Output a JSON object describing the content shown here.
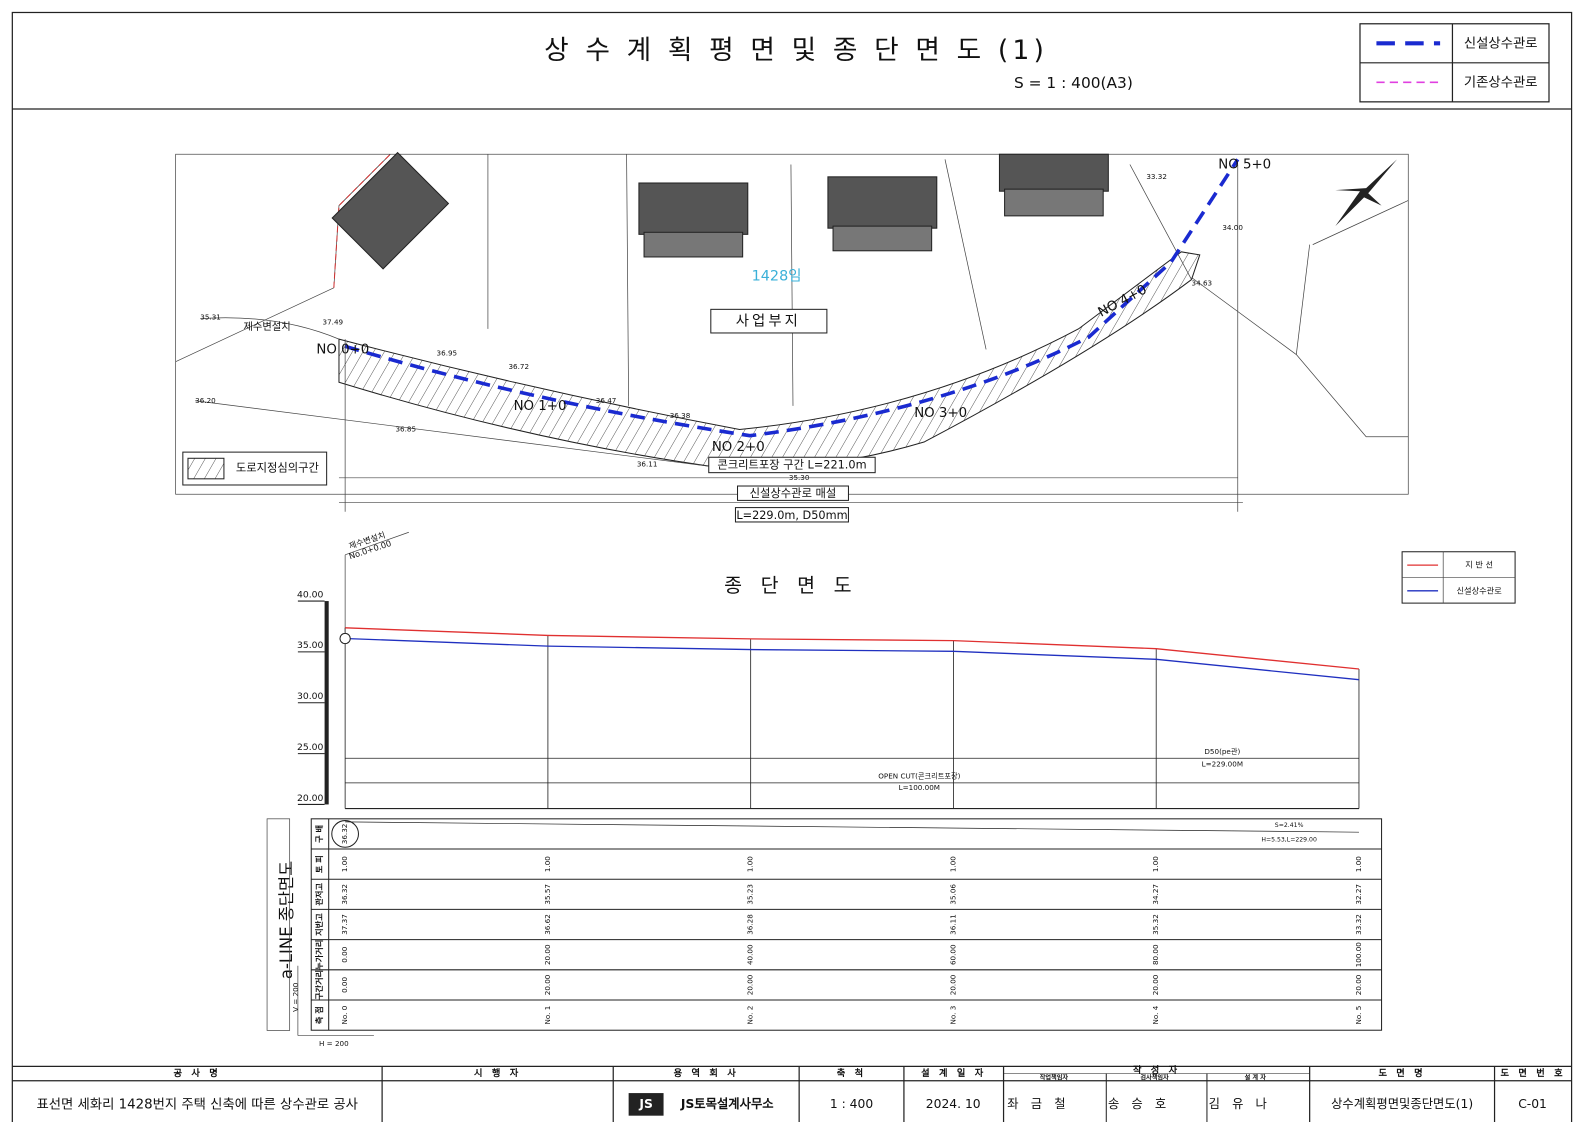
{
  "header": {
    "title": "상 수 계 획 평 면 및 종 단 면 도 (1)",
    "scale": "S = 1 : 400(A3)",
    "legend": [
      "신설상수관로",
      "기존상수관로"
    ]
  },
  "plan": {
    "parcel": "1428임",
    "site": "사업부지",
    "valve": "제수변설치",
    "stations": [
      "NO 0+0",
      "NO 1+0",
      "NO 2+0",
      "NO 3+0",
      "NO 4+0",
      "NO 5+0"
    ],
    "paving": "콘크리트포장 구간 L=221.0m",
    "pipe_note": "신설상수관로 매설",
    "pipe_spec": "L=229.0m, D50mm",
    "hatch_legend": "도로지정심의구간",
    "spot_levels": [
      "35.31",
      "37.49",
      "36.95",
      "36.72",
      "36.47",
      "36.38",
      "36.20",
      "36.85",
      "36.11",
      "35.30",
      "33.32",
      "34.00",
      "34.63"
    ]
  },
  "profile": {
    "title": "종 단 면 도",
    "start_note": "제수변설치",
    "start_station": "No.0+0.00",
    "legend": [
      {
        "name": "지 반 선",
        "color": "#e03030"
      },
      {
        "name": "신설상수관로",
        "color": "#2030c0"
      }
    ],
    "x": [
      0,
      20,
      40,
      60,
      80,
      100
    ],
    "xlim": [
      0,
      100
    ],
    "ylim": [
      20,
      40
    ],
    "yticks": [
      {
        "value": 20,
        "label": "20.00"
      },
      {
        "value": 25,
        "label": "25.00"
      },
      {
        "value": 30,
        "label": "30.00"
      },
      {
        "value": 35,
        "label": "35.00"
      },
      {
        "value": 40,
        "label": "40.00"
      }
    ],
    "ground": [
      37.37,
      36.62,
      36.28,
      36.11,
      35.32,
      33.32
    ],
    "pipe": [
      36.32,
      35.57,
      35.23,
      35.06,
      34.27,
      32.27
    ],
    "pipe_label": "D50(pe관)",
    "pipe_length": "L=229.00M",
    "method": "OPEN CUT(콘크리트포장)",
    "method_length": "L=100.00M",
    "side_title": "a-LINE 종단면도",
    "v_scale": "V = 200",
    "h_scale": "H = 200",
    "table": {
      "labels": [
        "구 배",
        "토 피",
        "관저고",
        "지반고",
        "누가거리",
        "구간거리",
        "측 점"
      ],
      "gradient": [
        "36.32",
        "S=2.41%",
        "H=5.53,L=229.00"
      ],
      "rows": [
        [
          "1.00",
          "1.00",
          "1.00",
          "1.00",
          "1.00",
          "1.00"
        ],
        [
          "36.32",
          "35.57",
          "35.23",
          "35.06",
          "34.27",
          "32.27"
        ],
        [
          "37.37",
          "36.62",
          "36.28",
          "36.11",
          "35.32",
          "33.32"
        ],
        [
          "0.00",
          "20.00",
          "40.00",
          "60.00",
          "80.00",
          "100.00"
        ],
        [
          "0.00",
          "20.00",
          "20.00",
          "20.00",
          "20.00",
          "20.00"
        ],
        [
          "No. 0",
          "No. 1",
          "No. 2",
          "No. 3",
          "No. 4",
          "No. 5"
        ]
      ]
    }
  },
  "title_block": {
    "headers": [
      "공 사 명",
      "시 행 자",
      "용 역 회 사",
      "축 척",
      "설 계 일 자",
      "작 성 자",
      "도 면 명",
      "도 면 번 호"
    ],
    "authors_roles": [
      "작업책임자",
      "검사책임자",
      "설 계 자"
    ],
    "project": "표선면 세화리 1428번지 주택 신축에 따른 상수관로 공사",
    "company": "JS토목설계사무소",
    "scale": "1 : 400",
    "date": "2024. 10",
    "authors": [
      "좌 금 철",
      "송 승 호",
      "김 유 나"
    ],
    "drawing": "상수계획평면및종단면도(1)",
    "number": "C-01"
  }
}
